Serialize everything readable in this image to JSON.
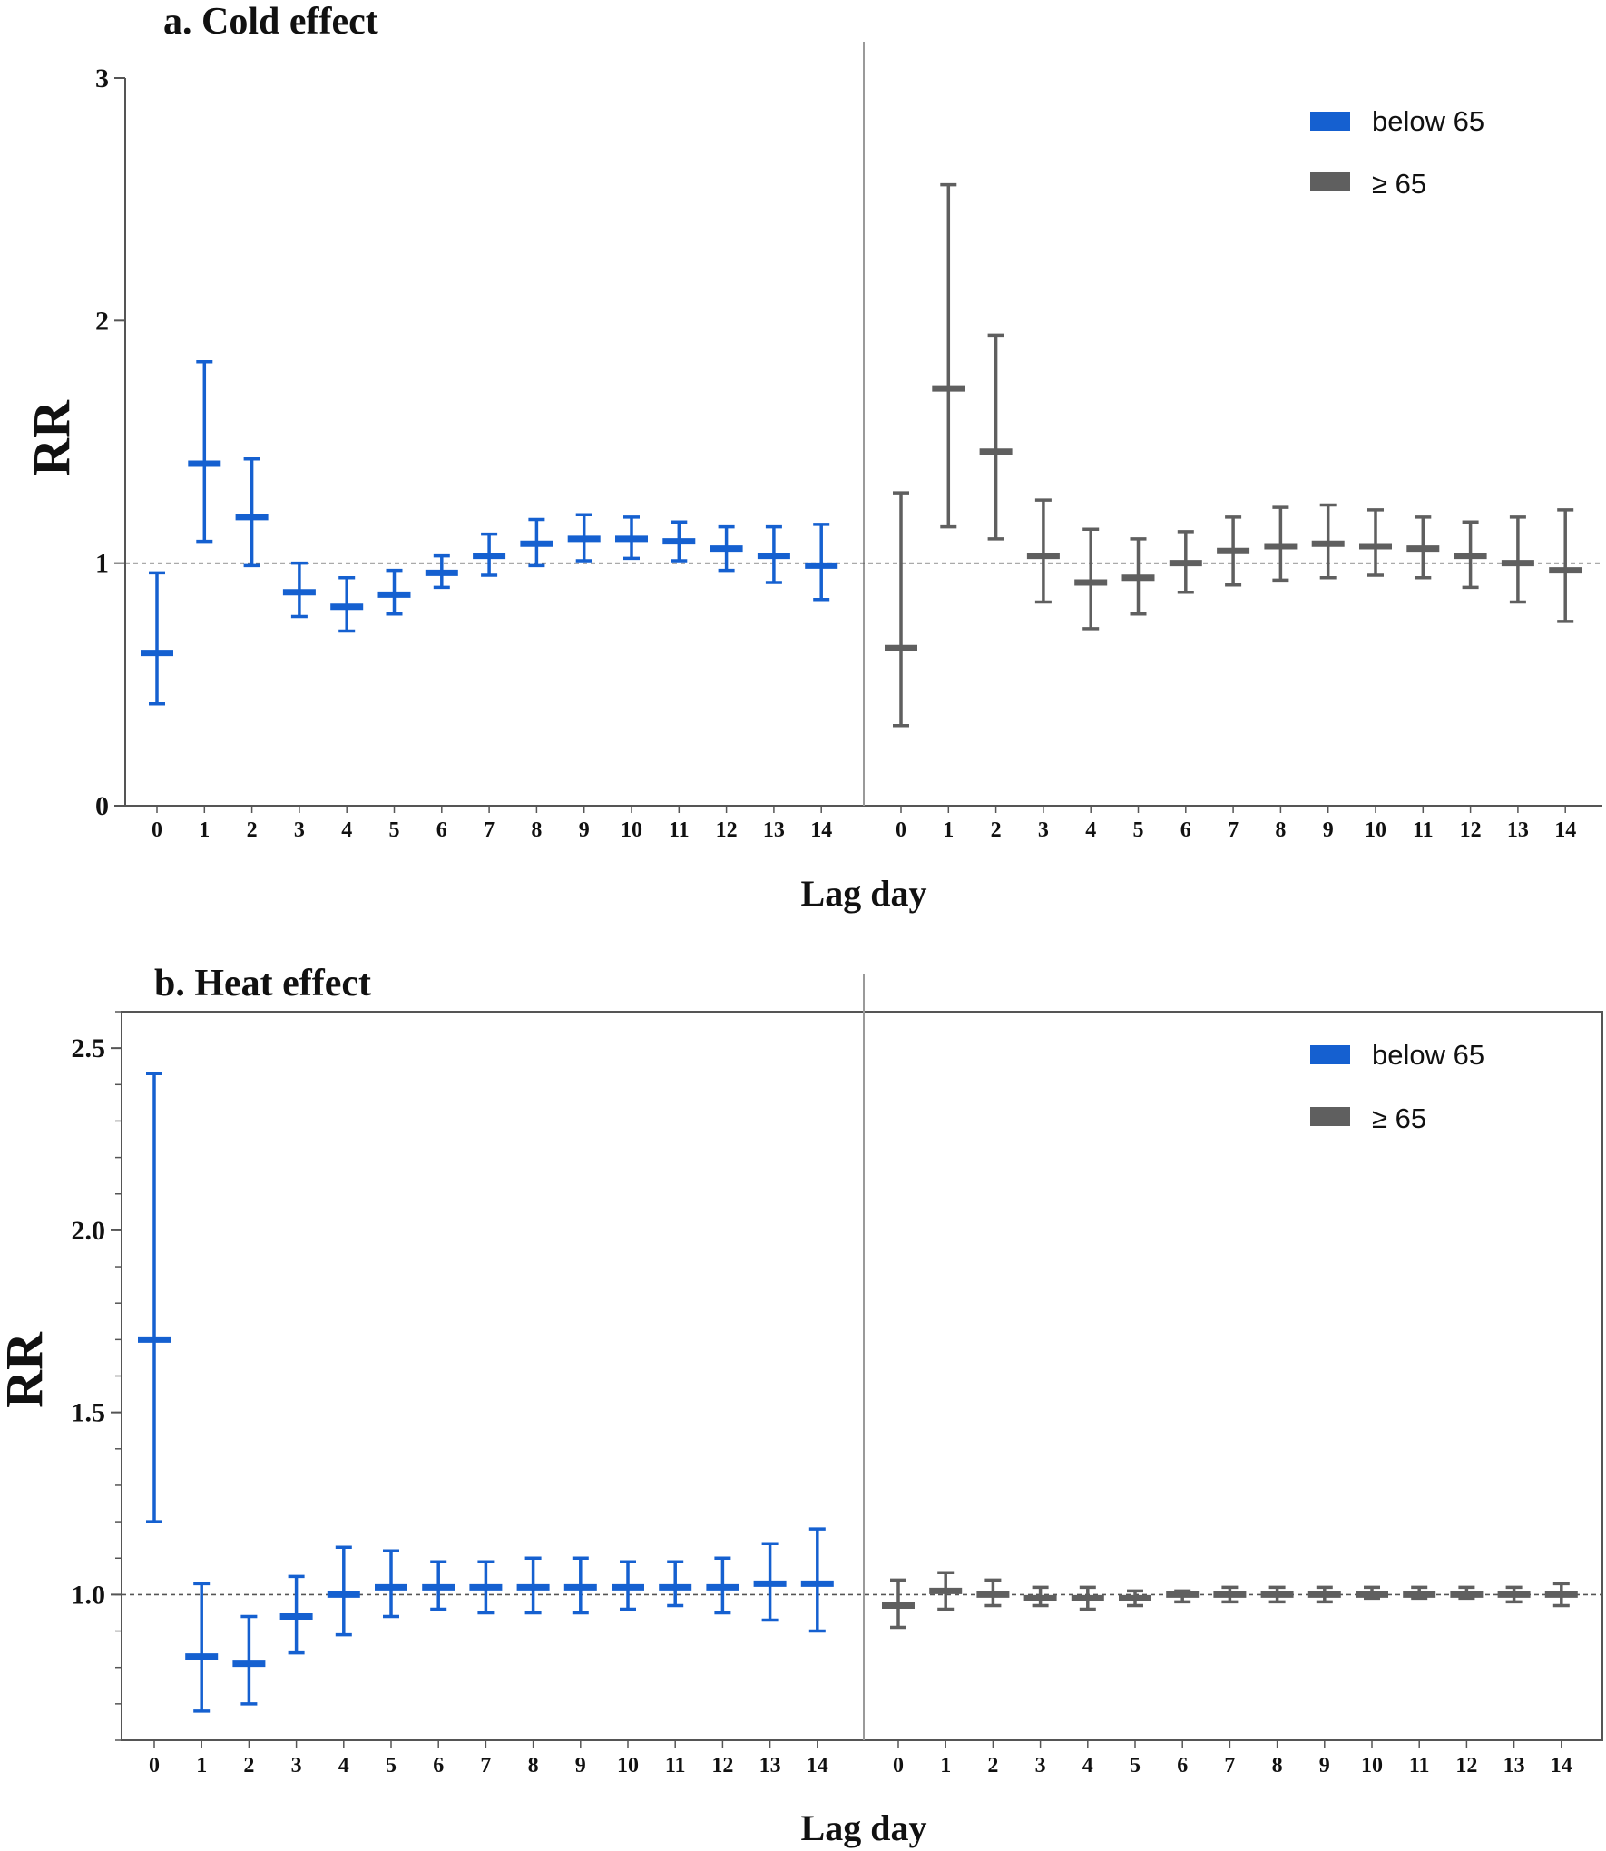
{
  "colors": {
    "below": "#1560d0",
    "above": "#5f5f5f"
  },
  "chart_data": [
    {
      "type": "errorbar",
      "title": "a. Cold effect",
      "ylabel": "RR",
      "xlabel": "Lag day",
      "ylim": [
        0,
        3
      ],
      "yticks": [
        0,
        1,
        2,
        3
      ],
      "ytick_labels": [
        "0",
        "1",
        "2",
        "3"
      ],
      "reference_line": 1,
      "framed": false,
      "legend": {
        "position": "top-right",
        "entries": [
          "below 65",
          "≥ 65"
        ]
      },
      "categories": [
        "0",
        "1",
        "2",
        "3",
        "4",
        "5",
        "6",
        "7",
        "8",
        "9",
        "10",
        "11",
        "12",
        "13",
        "14"
      ],
      "series": [
        {
          "name": "below 65",
          "color": "#1560d0",
          "estimate": [
            0.63,
            1.41,
            1.19,
            0.88,
            0.82,
            0.87,
            0.96,
            1.03,
            1.08,
            1.1,
            1.1,
            1.09,
            1.06,
            1.03,
            0.99
          ],
          "lower": [
            0.42,
            1.09,
            0.99,
            0.78,
            0.72,
            0.79,
            0.9,
            0.95,
            0.99,
            1.01,
            1.02,
            1.01,
            0.97,
            0.92,
            0.85
          ],
          "upper": [
            0.96,
            1.83,
            1.43,
            1.0,
            0.94,
            0.97,
            1.03,
            1.12,
            1.18,
            1.2,
            1.19,
            1.17,
            1.15,
            1.15,
            1.16
          ]
        },
        {
          "name": "≥ 65",
          "color": "#5f5f5f",
          "estimate": [
            0.65,
            1.72,
            1.46,
            1.03,
            0.92,
            0.94,
            1.0,
            1.05,
            1.07,
            1.08,
            1.07,
            1.06,
            1.03,
            1.0,
            0.97
          ],
          "lower": [
            0.33,
            1.15,
            1.1,
            0.84,
            0.73,
            0.79,
            0.88,
            0.91,
            0.93,
            0.94,
            0.95,
            0.94,
            0.9,
            0.84,
            0.76
          ],
          "upper": [
            1.29,
            2.56,
            1.94,
            1.26,
            1.14,
            1.1,
            1.13,
            1.19,
            1.23,
            1.24,
            1.22,
            1.19,
            1.17,
            1.19,
            1.22
          ]
        }
      ]
    },
    {
      "type": "errorbar",
      "title": "b. Heat effect",
      "ylabel": "RR",
      "xlabel": "Lag day",
      "ylim": [
        0.6,
        2.6
      ],
      "yticks": [
        1.0,
        1.5,
        2.0,
        2.5
      ],
      "ytick_labels": [
        "1.0",
        "1.5",
        "2.0",
        "2.5"
      ],
      "minor_step": 0.1,
      "reference_line": 1,
      "framed": true,
      "legend": {
        "position": "top-right",
        "entries": [
          "below 65",
          "≥ 65"
        ]
      },
      "categories": [
        "0",
        "1",
        "2",
        "3",
        "4",
        "5",
        "6",
        "7",
        "8",
        "9",
        "10",
        "11",
        "12",
        "13",
        "14"
      ],
      "series": [
        {
          "name": "below 65",
          "color": "#1560d0",
          "estimate": [
            1.7,
            0.83,
            0.81,
            0.94,
            1.0,
            1.02,
            1.02,
            1.02,
            1.02,
            1.02,
            1.02,
            1.02,
            1.02,
            1.03,
            1.03
          ],
          "lower": [
            1.2,
            0.68,
            0.7,
            0.84,
            0.89,
            0.94,
            0.96,
            0.95,
            0.95,
            0.95,
            0.96,
            0.97,
            0.95,
            0.93,
            0.9
          ],
          "upper": [
            2.43,
            1.03,
            0.94,
            1.05,
            1.13,
            1.12,
            1.09,
            1.09,
            1.1,
            1.1,
            1.09,
            1.09,
            1.1,
            1.14,
            1.18
          ]
        },
        {
          "name": "≥ 65",
          "color": "#5f5f5f",
          "estimate": [
            0.97,
            1.01,
            1.0,
            0.99,
            0.99,
            0.99,
            1.0,
            1.0,
            1.0,
            1.0,
            1.0,
            1.0,
            1.0,
            1.0,
            1.0
          ],
          "lower": [
            0.91,
            0.96,
            0.97,
            0.97,
            0.96,
            0.97,
            0.98,
            0.98,
            0.98,
            0.98,
            0.99,
            0.99,
            0.99,
            0.98,
            0.97
          ],
          "upper": [
            1.04,
            1.06,
            1.04,
            1.02,
            1.02,
            1.01,
            1.01,
            1.02,
            1.02,
            1.02,
            1.02,
            1.02,
            1.02,
            1.02,
            1.03
          ]
        }
      ]
    }
  ]
}
